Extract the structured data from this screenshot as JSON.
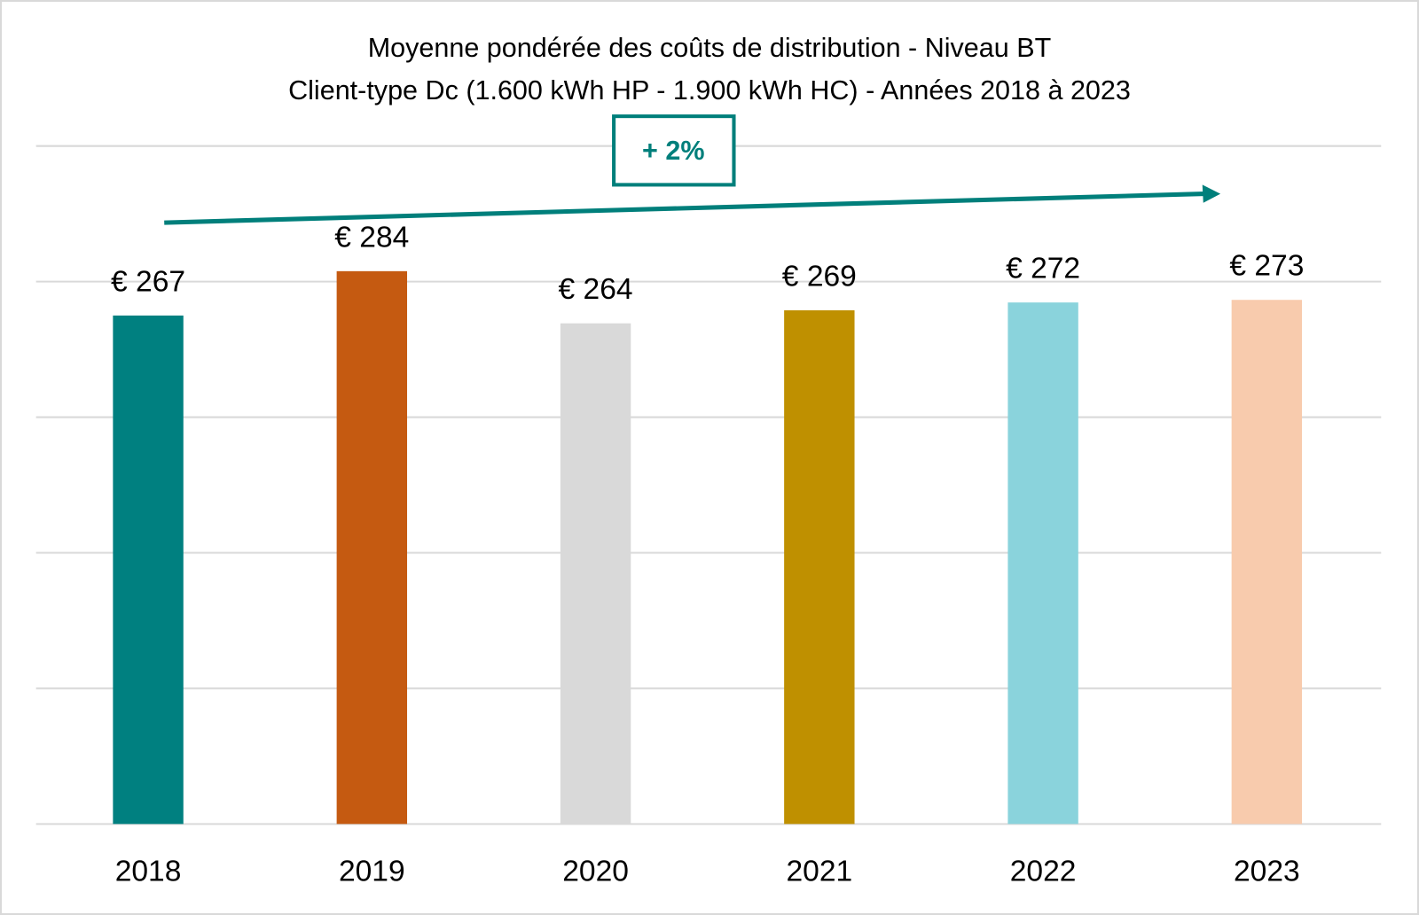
{
  "chart_data": {
    "type": "bar",
    "title": "Moyenne pondérée des coûts de distribution - Niveau BT",
    "subtitle": "Client-type Dc (1.600 kWh HP - 1.900 kWh HC) - Années 2018 à 2023",
    "categories": [
      "2018",
      "2019",
      "2020",
      "2021",
      "2022",
      "2023"
    ],
    "values": [
      267,
      284,
      264,
      269,
      272,
      273
    ],
    "data_labels": [
      "€ 267",
      "€ 284",
      "€ 264",
      "€ 269",
      "€ 272",
      "€ 273"
    ],
    "colors": [
      "#008080",
      "#C55A11",
      "#D9D9D9",
      "#BF9000",
      "#8AD3DC",
      "#F8CBAD"
    ],
    "xlabel": "",
    "ylabel": "",
    "ylim": [
      72,
      332
    ],
    "grid": true,
    "legend": "none",
    "annotation": {
      "text": "+ 2%",
      "color": "#007F7B",
      "arrow": "trend-up"
    }
  }
}
